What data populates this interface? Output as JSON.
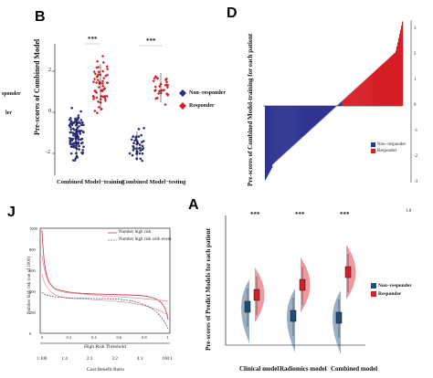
{
  "figure": {
    "crop_left_text_1": "sponder",
    "crop_left_text_2": "ler",
    "corner_mark": "1.0"
  },
  "panelB": {
    "label": "B",
    "ylabel": "Pre-scores of Combined Model",
    "yticks": [
      "2",
      "0",
      "-2"
    ],
    "xlabels": [
      "Combined Model−training",
      "Combined Model−testing"
    ],
    "sig": [
      "***",
      "***"
    ],
    "legend": [
      "Non−responder",
      "Responder"
    ],
    "colors": {
      "nonresponder": "#2b2f7a",
      "responder": "#d3202b"
    }
  },
  "panelD": {
    "label": "D",
    "ylabel": "Pre-scores of Combined Model-training for each patient",
    "yticks": [
      "3",
      "2",
      "1",
      "0",
      "-1",
      "-2",
      "-3"
    ],
    "legend": [
      "Non−responder",
      "Responder"
    ],
    "colors": {
      "nonresponder": "#2e3490",
      "responder": "#d61f26"
    }
  },
  "panelJ": {
    "label": "J",
    "ylabel": "Number high risk (out of 1000)",
    "yticks": [
      "1000",
      "800",
      "600",
      "400",
      "200",
      "0"
    ],
    "xlabel": "High Risk Threshold",
    "xticks": [
      "0",
      "0.2",
      "0.4",
      "0.6",
      "0.8",
      "1"
    ],
    "xlabel2": "Cost:Benefit Ratio",
    "xticks2": [
      "1:100",
      "1:4",
      "2:3",
      "3:2",
      "4:1",
      "100:1"
    ],
    "legend": [
      "Number high risk",
      "Number high risk with event"
    ],
    "colors": {
      "high_risk": "#c8455a",
      "with_event": "#333"
    }
  },
  "panelA": {
    "label": "A",
    "ylabel": "Pre-scores of Predict Models for each patient",
    "xlabels": [
      "Clinical model",
      "Radiomics model",
      "Combined model"
    ],
    "sig": [
      "***",
      "***",
      "***"
    ],
    "legend": [
      "Non−responder",
      "Responder"
    ],
    "colors": {
      "nonresponder": "#1f4e79",
      "responder": "#d3202b"
    }
  }
}
